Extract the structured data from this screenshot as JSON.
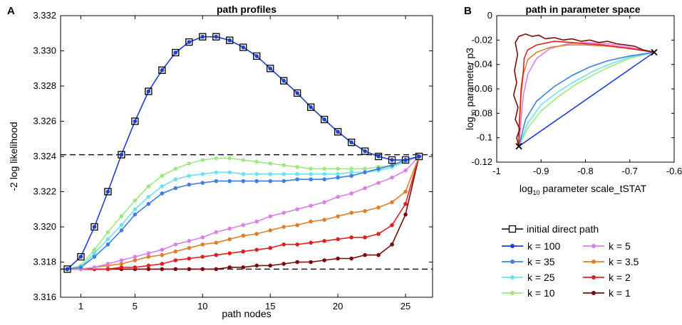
{
  "panels": {
    "a": "A",
    "b": "B"
  },
  "chart_data": [
    {
      "type": "line",
      "title": "path profiles",
      "xlabel": "path nodes",
      "ylabel": "-2 log likelihood",
      "xlim": [
        -0.5,
        27
      ],
      "ylim": [
        3.316,
        3.332
      ],
      "xticks": [
        1,
        5,
        10,
        15,
        20,
        25
      ],
      "yticks": [
        3.316,
        3.318,
        3.32,
        3.322,
        3.324,
        3.326,
        3.328,
        3.33,
        3.332
      ],
      "ytick_labels": [
        "3.316",
        "3.318",
        "3.320",
        "3.322",
        "3.324",
        "3.326",
        "3.328",
        "3.330",
        "3.332"
      ],
      "reference_lines": [
        3.3241,
        3.3176
      ],
      "x": [
        0,
        1,
        2,
        3,
        4,
        5,
        6,
        7,
        8,
        9,
        10,
        11,
        12,
        13,
        14,
        15,
        16,
        17,
        18,
        19,
        20,
        21,
        22,
        23,
        24,
        25,
        26
      ],
      "series": [
        {
          "name": "initial direct path",
          "color": "#000000",
          "marker": "square",
          "values": [
            3.3176,
            3.3183,
            3.32,
            3.322,
            3.3241,
            3.326,
            3.3277,
            3.3289,
            3.3299,
            3.3305,
            3.3308,
            3.3308,
            3.3306,
            3.3302,
            3.3297,
            3.329,
            3.3283,
            3.3276,
            3.3268,
            3.3261,
            3.3254,
            3.3248,
            3.3243,
            3.324,
            3.3238,
            3.3238,
            3.324
          ]
        },
        {
          "name": "k = 100",
          "color": "#1f3fcf",
          "values": [
            3.3176,
            3.3183,
            3.32,
            3.322,
            3.3241,
            3.326,
            3.3277,
            3.3289,
            3.3299,
            3.3305,
            3.3308,
            3.3308,
            3.3306,
            3.3302,
            3.3297,
            3.329,
            3.3283,
            3.3276,
            3.3268,
            3.3261,
            3.3254,
            3.3248,
            3.3243,
            3.324,
            3.3238,
            3.3238,
            3.324
          ]
        },
        {
          "name": "k = 35",
          "color": "#3f7fdf",
          "values": [
            3.3176,
            3.3177,
            3.3183,
            3.319,
            3.3198,
            3.3207,
            3.3213,
            3.3219,
            3.3222,
            3.3224,
            3.3225,
            3.3226,
            3.3226,
            3.3226,
            3.3226,
            3.3226,
            3.3226,
            3.3227,
            3.3227,
            3.3227,
            3.3228,
            3.3229,
            3.3231,
            3.3233,
            3.3235,
            3.3238,
            3.324
          ]
        },
        {
          "name": "k = 25",
          "color": "#6fe0f0",
          "values": [
            3.3176,
            3.3177,
            3.3185,
            3.3193,
            3.3201,
            3.321,
            3.3217,
            3.3223,
            3.3227,
            3.3229,
            3.323,
            3.3231,
            3.3231,
            3.323,
            3.323,
            3.323,
            3.323,
            3.323,
            3.323,
            3.323,
            3.323,
            3.3231,
            3.3231,
            3.3232,
            3.3234,
            3.3237,
            3.324
          ]
        },
        {
          "name": "k = 10",
          "color": "#9fe87f",
          "values": [
            3.3176,
            3.3178,
            3.3187,
            3.3197,
            3.3206,
            3.3215,
            3.3223,
            3.3229,
            3.3233,
            3.3236,
            3.3238,
            3.3239,
            3.3239,
            3.3238,
            3.3237,
            3.3236,
            3.3235,
            3.3234,
            3.3233,
            3.3233,
            3.3233,
            3.3233,
            3.3233,
            3.3234,
            3.3235,
            3.3237,
            3.324
          ]
        },
        {
          "name": "k = 5",
          "color": "#d882e8",
          "values": [
            3.3176,
            3.3176,
            3.3177,
            3.3179,
            3.3181,
            3.3183,
            3.3185,
            3.3187,
            3.319,
            3.3192,
            3.3194,
            3.3197,
            3.3199,
            3.3201,
            3.3203,
            3.3206,
            3.3208,
            3.321,
            3.3212,
            3.3214,
            3.3217,
            3.3219,
            3.3222,
            3.3225,
            3.3228,
            3.3232,
            3.324
          ]
        },
        {
          "name": "k = 3.5",
          "color": "#e07f2a",
          "values": [
            3.3176,
            3.3176,
            3.3177,
            3.3178,
            3.3179,
            3.3181,
            3.3183,
            3.3184,
            3.3186,
            3.3188,
            3.319,
            3.3191,
            3.3193,
            3.3195,
            3.3196,
            3.3198,
            3.32,
            3.3201,
            3.3203,
            3.3204,
            3.3206,
            3.3208,
            3.3209,
            3.3211,
            3.3214,
            3.322,
            3.324
          ]
        },
        {
          "name": "k = 2",
          "color": "#e02020",
          "values": [
            3.3176,
            3.3176,
            3.3176,
            3.3176,
            3.3177,
            3.3177,
            3.3178,
            3.3179,
            3.3181,
            3.3182,
            3.3183,
            3.3184,
            3.3185,
            3.3186,
            3.3187,
            3.3188,
            3.319,
            3.319,
            3.3191,
            3.3192,
            3.3193,
            3.3194,
            3.3194,
            3.3196,
            3.3201,
            3.3213,
            3.324
          ]
        },
        {
          "name": "k = 1",
          "color": "#7a0a0a",
          "values": [
            3.3176,
            3.3176,
            3.3176,
            3.3176,
            3.3176,
            3.3176,
            3.3176,
            3.3176,
            3.3176,
            3.3176,
            3.3176,
            3.3176,
            3.3177,
            3.3177,
            3.3178,
            3.3178,
            3.3179,
            3.318,
            3.318,
            3.3181,
            3.3182,
            3.3182,
            3.3184,
            3.3184,
            3.319,
            3.3207,
            3.324
          ]
        }
      ],
      "legend": [
        "initial direct path",
        "k = 100",
        "k = 35",
        "k = 25",
        "k = 10",
        "k = 5",
        "k = 3.5",
        "k = 2",
        "k = 1"
      ]
    },
    {
      "type": "line",
      "title": "path in parameter space",
      "xlabel": "log10 parameter scale_tSTAT",
      "xlabel_base": "log",
      "xlabel_sub": "10",
      "xlabel_rest": " parameter scale_tSTAT",
      "ylabel": "log10 parameter p3",
      "ylabel_base": "log",
      "ylabel_sub": "10",
      "ylabel_rest": " parameter p3",
      "xlim": [
        -1,
        -0.6
      ],
      "ylim": [
        -0.12,
        0
      ],
      "xticks": [
        -1,
        -0.9,
        -0.8,
        -0.7,
        -0.6
      ],
      "xtick_labels": [
        "-1",
        "-0.9",
        "-0.8",
        "-0.7",
        "-0.6"
      ],
      "yticks": [
        -0.12,
        -0.1,
        -0.08,
        -0.06,
        -0.04,
        -0.02,
        0
      ],
      "ytick_labels": [
        "-0.12",
        "-0.1",
        "-0.08",
        "-0.06",
        "-0.04",
        "-0.02",
        "0"
      ],
      "endpoints": [
        [
          -0.95,
          -0.107
        ],
        [
          -0.645,
          -0.03
        ]
      ],
      "endpoint_marker": "x",
      "series": [
        {
          "name": "k = 100",
          "color": "#1f3fcf",
          "points": [
            [
              -0.95,
              -0.107
            ],
            [
              -0.645,
              -0.03
            ]
          ]
        },
        {
          "name": "k = 10",
          "color": "#9fe87f",
          "points": [
            [
              -0.95,
              -0.107
            ],
            [
              -0.93,
              -0.092
            ],
            [
              -0.9,
              -0.078
            ],
            [
              -0.86,
              -0.066
            ],
            [
              -0.82,
              -0.056
            ],
            [
              -0.78,
              -0.048
            ],
            [
              -0.74,
              -0.041
            ],
            [
              -0.7,
              -0.035
            ],
            [
              -0.645,
              -0.03
            ]
          ]
        },
        {
          "name": "k = 25",
          "color": "#6fe0f0",
          "points": [
            [
              -0.95,
              -0.107
            ],
            [
              -0.93,
              -0.088
            ],
            [
              -0.9,
              -0.073
            ],
            [
              -0.86,
              -0.062
            ],
            [
              -0.82,
              -0.053
            ],
            [
              -0.78,
              -0.045
            ],
            [
              -0.74,
              -0.039
            ],
            [
              -0.7,
              -0.034
            ],
            [
              -0.645,
              -0.03
            ]
          ]
        },
        {
          "name": "k = 35",
          "color": "#3f7fdf",
          "points": [
            [
              -0.95,
              -0.107
            ],
            [
              -0.935,
              -0.085
            ],
            [
              -0.91,
              -0.07
            ],
            [
              -0.87,
              -0.058
            ],
            [
              -0.83,
              -0.049
            ],
            [
              -0.79,
              -0.042
            ],
            [
              -0.75,
              -0.037
            ],
            [
              -0.7,
              -0.033
            ],
            [
              -0.645,
              -0.03
            ]
          ]
        },
        {
          "name": "k = 5",
          "color": "#d882e8",
          "points": [
            [
              -0.95,
              -0.107
            ],
            [
              -0.945,
              -0.085
            ],
            [
              -0.94,
              -0.065
            ],
            [
              -0.93,
              -0.048
            ],
            [
              -0.91,
              -0.035
            ],
            [
              -0.88,
              -0.027
            ],
            [
              -0.84,
              -0.023
            ],
            [
              -0.8,
              -0.022
            ],
            [
              -0.75,
              -0.023
            ],
            [
              -0.7,
              -0.026
            ],
            [
              -0.645,
              -0.03
            ]
          ]
        },
        {
          "name": "k = 3.5",
          "color": "#e07f2a",
          "points": [
            [
              -0.95,
              -0.107
            ],
            [
              -0.948,
              -0.085
            ],
            [
              -0.945,
              -0.065
            ],
            [
              -0.94,
              -0.048
            ],
            [
              -0.93,
              -0.036
            ],
            [
              -0.91,
              -0.03
            ],
            [
              -0.88,
              -0.026
            ],
            [
              -0.84,
              -0.024
            ],
            [
              -0.8,
              -0.024
            ],
            [
              -0.75,
              -0.025
            ],
            [
              -0.7,
              -0.027
            ],
            [
              -0.645,
              -0.03
            ]
          ]
        },
        {
          "name": "k = 2",
          "color": "#e02020",
          "points": [
            [
              -0.95,
              -0.107
            ],
            [
              -0.95,
              -0.095
            ],
            [
              -0.948,
              -0.08
            ],
            [
              -0.945,
              -0.06
            ],
            [
              -0.94,
              -0.045
            ],
            [
              -0.938,
              -0.035
            ],
            [
              -0.93,
              -0.028
            ],
            [
              -0.91,
              -0.024
            ],
            [
              -0.87,
              -0.021
            ],
            [
              -0.83,
              -0.022
            ],
            [
              -0.8,
              -0.023
            ],
            [
              -0.76,
              -0.024
            ],
            [
              -0.72,
              -0.026
            ],
            [
              -0.68,
              -0.028
            ],
            [
              -0.645,
              -0.03
            ]
          ]
        },
        {
          "name": "k = 1",
          "color": "#7a0a0a",
          "points": [
            [
              -0.95,
              -0.107
            ],
            [
              -0.955,
              -0.1
            ],
            [
              -0.948,
              -0.093
            ],
            [
              -0.958,
              -0.085
            ],
            [
              -0.952,
              -0.075
            ],
            [
              -0.962,
              -0.065
            ],
            [
              -0.955,
              -0.055
            ],
            [
              -0.96,
              -0.045
            ],
            [
              -0.953,
              -0.032
            ],
            [
              -0.958,
              -0.022
            ],
            [
              -0.95,
              -0.017
            ],
            [
              -0.935,
              -0.015
            ],
            [
              -0.92,
              -0.017
            ],
            [
              -0.905,
              -0.016
            ],
            [
              -0.89,
              -0.019
            ],
            [
              -0.87,
              -0.018
            ],
            [
              -0.85,
              -0.02
            ],
            [
              -0.83,
              -0.019
            ],
            [
              -0.81,
              -0.021
            ],
            [
              -0.79,
              -0.02
            ],
            [
              -0.77,
              -0.022
            ],
            [
              -0.75,
              -0.021
            ],
            [
              -0.73,
              -0.023
            ],
            [
              -0.71,
              -0.024
            ],
            [
              -0.69,
              -0.025
            ],
            [
              -0.67,
              -0.028
            ],
            [
              -0.645,
              -0.03
            ]
          ]
        }
      ]
    }
  ]
}
